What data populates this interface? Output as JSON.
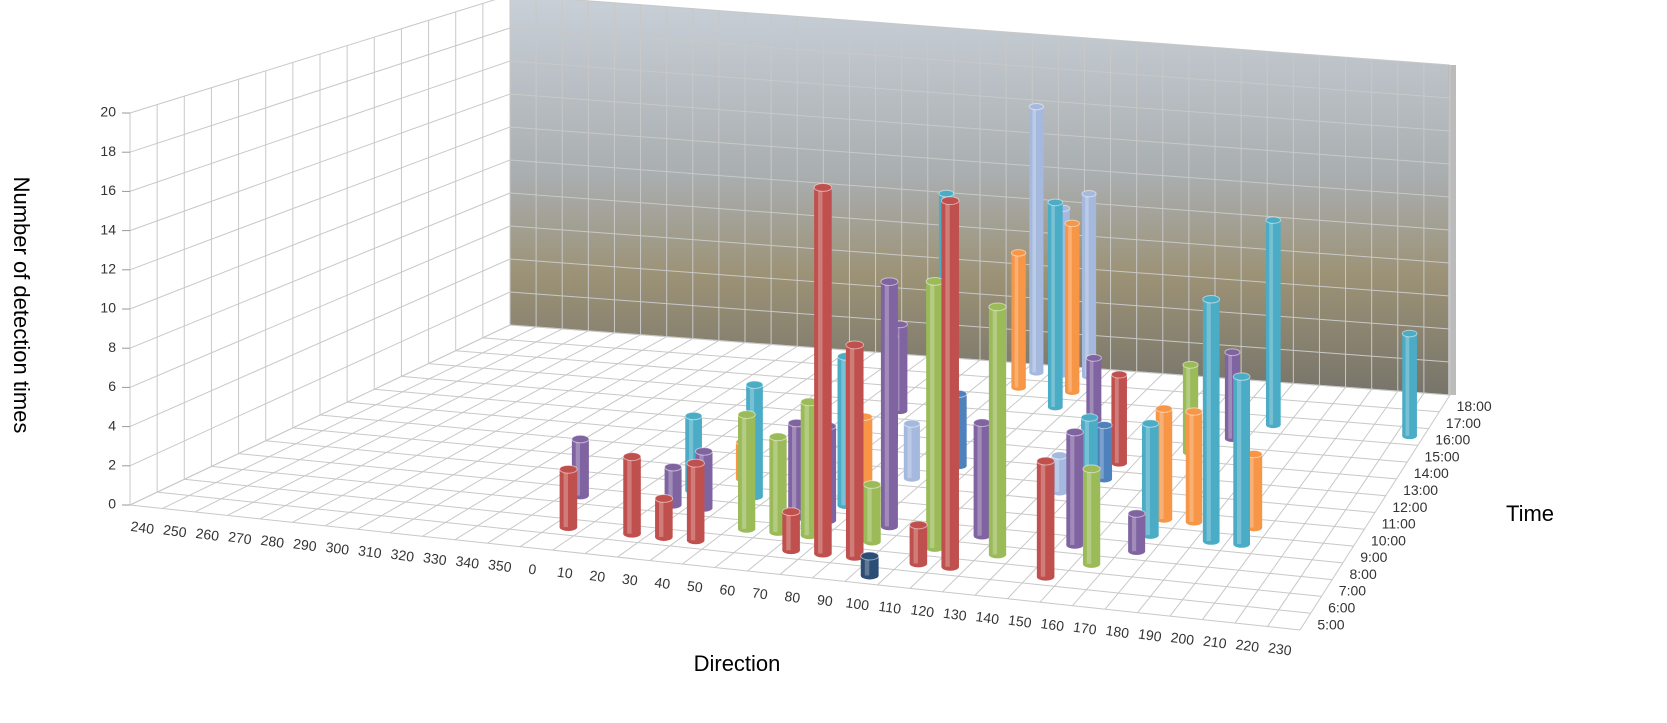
{
  "chart_data": {
    "type": "bar3d",
    "xlabel": "Direction",
    "ylabel": "Number of detection times",
    "zlabel": "Time",
    "categories": [
      "240",
      "250",
      "260",
      "270",
      "280",
      "290",
      "300",
      "310",
      "320",
      "330",
      "340",
      "350",
      "0",
      "10",
      "20",
      "30",
      "40",
      "50",
      "60",
      "70",
      "80",
      "90",
      "100",
      "110",
      "120",
      "130",
      "140",
      "150",
      "160",
      "170",
      "180",
      "190",
      "200",
      "210",
      "220",
      "230"
    ],
    "time_categories": [
      "5:00",
      "6:00",
      "7:00",
      "8:00",
      "9:00",
      "10:00",
      "11:00",
      "12:00",
      "13:00",
      "14:00",
      "15:00",
      "16:00",
      "17:00",
      "18:00"
    ],
    "colors": [
      "#2c4d75",
      "#c0504d",
      "#9bbb59",
      "#8064a2",
      "#4bacc6",
      "#f79646",
      "#a5b9de",
      "#4f81bd",
      "#c0504d",
      "#9bbb59",
      "#8064a2",
      "#4bacc6",
      "#f79646",
      "#a5b9de"
    ],
    "ylim": [
      0,
      20
    ],
    "yticks": [
      0,
      2,
      4,
      6,
      8,
      10,
      12,
      14,
      16,
      18,
      20
    ],
    "grid": true,
    "values": [
      [
        null,
        null,
        null,
        null,
        null,
        null,
        null,
        null,
        null,
        null,
        null,
        null,
        null,
        null,
        null,
        null,
        null,
        null,
        null,
        null,
        null,
        null,
        1,
        null,
        null,
        null,
        null,
        null,
        null,
        null,
        null,
        null,
        null,
        null,
        null,
        null
      ],
      [
        null,
        null,
        null,
        null,
        null,
        null,
        null,
        null,
        null,
        null,
        null,
        null,
        3,
        null,
        4,
        2,
        4,
        null,
        null,
        2,
        19,
        11,
        null,
        2,
        19,
        null,
        null,
        6,
        null,
        null,
        null,
        null,
        null,
        null,
        null,
        null
      ],
      [
        null,
        null,
        null,
        null,
        null,
        null,
        null,
        null,
        null,
        null,
        null,
        null,
        null,
        null,
        null,
        null,
        null,
        6,
        5,
        7,
        null,
        3,
        null,
        14,
        null,
        13,
        null,
        null,
        5,
        null,
        null,
        null,
        null,
        null,
        null,
        null
      ],
      [
        null,
        null,
        null,
        null,
        null,
        null,
        null,
        null,
        null,
        null,
        null,
        3,
        null,
        null,
        2,
        3,
        null,
        null,
        5,
        5,
        null,
        13,
        null,
        null,
        6,
        null,
        null,
        6,
        null,
        2,
        null,
        null,
        null,
        null,
        null,
        null
      ],
      [
        null,
        null,
        null,
        null,
        null,
        null,
        null,
        null,
        null,
        null,
        null,
        null,
        null,
        null,
        4,
        null,
        6,
        null,
        null,
        8,
        null,
        null,
        6,
        null,
        null,
        null,
        null,
        6,
        null,
        6,
        null,
        13,
        9,
        null,
        null,
        null
      ],
      [
        null,
        null,
        null,
        null,
        null,
        null,
        null,
        null,
        null,
        null,
        null,
        null,
        null,
        null,
        null,
        2,
        null,
        null,
        null,
        4,
        null,
        null,
        null,
        2,
        null,
        null,
        null,
        null,
        null,
        6,
        6,
        null,
        4,
        null,
        null,
        null
      ],
      [
        null,
        null,
        null,
        null,
        null,
        null,
        null,
        null,
        null,
        null,
        null,
        null,
        null,
        null,
        null,
        null,
        null,
        null,
        null,
        null,
        3,
        null,
        null,
        null,
        null,
        2,
        null,
        null,
        null,
        null,
        null,
        null,
        null,
        null,
        null,
        null
      ],
      [
        null,
        null,
        null,
        null,
        null,
        null,
        null,
        null,
        null,
        null,
        null,
        null,
        null,
        null,
        null,
        null,
        null,
        null,
        null,
        null,
        null,
        4,
        null,
        null,
        null,
        null,
        3,
        null,
        null,
        null,
        null,
        null,
        null,
        null,
        null,
        null
      ],
      [
        null,
        null,
        null,
        null,
        null,
        null,
        null,
        null,
        null,
        null,
        null,
        null,
        null,
        null,
        null,
        null,
        null,
        null,
        6,
        null,
        null,
        null,
        null,
        null,
        null,
        null,
        5,
        null,
        null,
        null,
        null,
        null,
        null,
        null,
        null,
        null
      ],
      [
        null,
        null,
        null,
        null,
        null,
        null,
        null,
        null,
        null,
        null,
        null,
        null,
        null,
        null,
        null,
        null,
        4,
        null,
        null,
        6,
        null,
        null,
        null,
        null,
        null,
        null,
        null,
        null,
        5,
        null,
        null,
        null,
        null,
        null,
        null,
        null
      ],
      [
        null,
        null,
        null,
        null,
        null,
        null,
        null,
        null,
        null,
        null,
        null,
        null,
        null,
        null,
        null,
        null,
        null,
        5,
        null,
        null,
        null,
        null,
        null,
        null,
        4,
        null,
        null,
        null,
        null,
        5,
        null,
        null,
        null,
        null,
        null,
        null
      ],
      [
        null,
        null,
        null,
        null,
        null,
        null,
        null,
        null,
        null,
        null,
        null,
        null,
        null,
        null,
        null,
        null,
        null,
        null,
        12,
        null,
        null,
        null,
        12,
        null,
        null,
        null,
        null,
        null,
        null,
        null,
        12,
        null,
        null,
        null,
        null,
        6
      ],
      [
        null,
        null,
        null,
        null,
        null,
        null,
        null,
        null,
        null,
        null,
        null,
        null,
        null,
        null,
        null,
        null,
        null,
        null,
        null,
        null,
        8,
        null,
        10,
        null,
        null,
        null,
        null,
        null,
        null,
        null,
        null,
        null,
        null,
        null,
        null,
        null
      ],
      [
        null,
        null,
        null,
        null,
        null,
        null,
        null,
        null,
        null,
        null,
        null,
        null,
        null,
        null,
        null,
        null,
        null,
        null,
        null,
        null,
        16,
        10,
        11,
        null,
        null,
        null,
        null,
        null,
        null,
        null,
        null,
        null,
        null,
        null,
        null,
        null
      ]
    ]
  }
}
